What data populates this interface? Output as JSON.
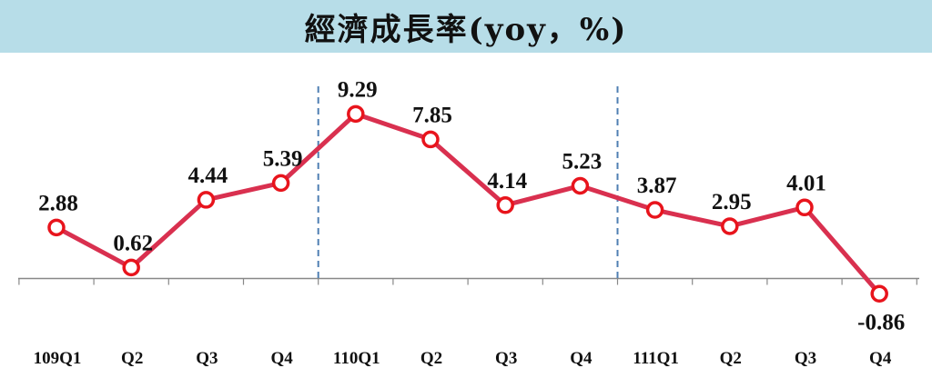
{
  "title": "經濟成長率(yoy，%)",
  "chart_data": {
    "type": "line",
    "title": "經濟成長率(yoy，%)",
    "categories": [
      "109Q1",
      "Q2",
      "Q3",
      "Q4",
      "110Q1",
      "Q2",
      "Q3",
      "Q4",
      "111Q1",
      "Q2",
      "Q3",
      "Q4"
    ],
    "values": [
      2.88,
      0.62,
      4.44,
      5.39,
      9.29,
      7.85,
      4.14,
      5.23,
      3.87,
      2.95,
      4.01,
      -0.86
    ],
    "data_labels": [
      "2.88",
      "0.62",
      "4.44",
      "5.39",
      "9.29",
      "7.85",
      "4.14",
      "5.23",
      "3.87",
      "2.95",
      "4.01",
      "-0.86"
    ],
    "year_dividers_after_index": [
      3,
      7
    ],
    "ylim": [
      -1.5,
      10
    ],
    "grid": false,
    "legend": false,
    "colors": {
      "line": "#d9304f",
      "marker_edge": "#e8141c",
      "marker_fill": "#ffffff",
      "divider": "#4f7fb3",
      "axis": "#888888"
    }
  }
}
